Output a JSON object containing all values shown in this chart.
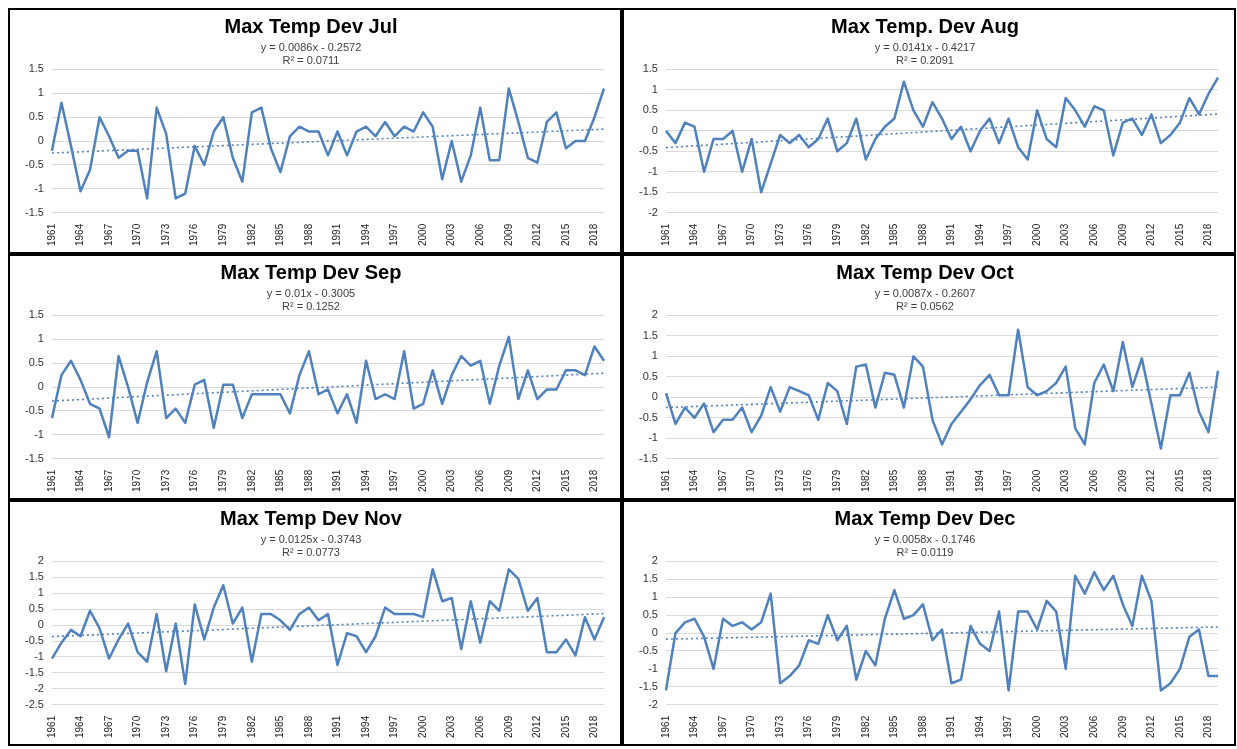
{
  "chart_data": [
    {
      "type": "line",
      "title": "Max Temp Dev Jul",
      "annotations": [
        "y = 0.0086x - 0.2572",
        "R² = 0.0711"
      ],
      "categories": [
        "1961",
        null,
        null,
        "1964",
        null,
        null,
        "1967",
        null,
        null,
        "1970",
        null,
        null,
        "1973",
        null,
        null,
        "1976",
        null,
        null,
        "1979",
        null,
        null,
        "1982",
        null,
        null,
        "1985",
        null,
        null,
        "1988",
        null,
        null,
        "1991",
        null,
        null,
        "1994",
        null,
        null,
        "1997",
        null,
        null,
        "2000",
        null,
        null,
        "2003",
        null,
        null,
        "2006",
        null,
        null,
        "2009",
        null,
        null,
        "2012",
        null,
        null,
        "2015",
        null,
        null,
        "2018",
        null
      ],
      "series": [
        {
          "color": "#4f81bd",
          "values": [
            -0.2,
            0.8,
            -0.1,
            -1.05,
            -0.6,
            0.5,
            0.1,
            -0.35,
            -0.2,
            -0.2,
            -1.2,
            0.7,
            0.15,
            -1.2,
            -1.1,
            -0.1,
            -0.5,
            0.2,
            0.5,
            -0.35,
            -0.85,
            0.6,
            0.7,
            -0.15,
            -0.65,
            0.1,
            0.3,
            0.2,
            0.2,
            -0.3,
            0.2,
            -0.3,
            0.2,
            0.3,
            0.1,
            0.4,
            0.1,
            0.3,
            0.2,
            0.6,
            0.3,
            -0.8,
            0.0,
            -0.85,
            -0.3,
            0.7,
            -0.4,
            -0.4,
            1.1,
            0.4,
            -0.35,
            -0.45,
            0.4,
            0.6,
            -0.15,
            0.0,
            0.0,
            0.5,
            1.1
          ]
        },
        {
          "color": "#4f81bd",
          "line_style": "dotted",
          "values": [
            -0.25,
            null,
            null,
            null,
            null,
            null,
            null,
            null,
            null,
            null,
            null,
            null,
            null,
            null,
            null,
            null,
            null,
            null,
            null,
            null,
            null,
            null,
            null,
            null,
            null,
            null,
            null,
            null,
            null,
            null,
            null,
            null,
            null,
            null,
            null,
            null,
            null,
            null,
            null,
            null,
            null,
            null,
            null,
            null,
            null,
            null,
            null,
            null,
            null,
            null,
            null,
            null,
            null,
            null,
            null,
            null,
            null,
            null,
            0.25
          ]
        }
      ],
      "ylim": [
        -1.5,
        1.5
      ],
      "yticks": [
        -1.5,
        -1,
        -0.5,
        0,
        0.5,
        1,
        1.5
      ],
      "grid": "y",
      "legend": false,
      "marker": "none",
      "line_style": "solid"
    },
    {
      "type": "line",
      "title": "Max Temp. Dev Aug",
      "annotations": [
        "y = 0.0141x - 0.4217",
        "R² = 0.2091"
      ],
      "categories": [
        "1961",
        null,
        null,
        "1964",
        null,
        null,
        "1967",
        null,
        null,
        "1970",
        null,
        null,
        "1973",
        null,
        null,
        "1976",
        null,
        null,
        "1979",
        null,
        null,
        "1982",
        null,
        null,
        "1985",
        null,
        null,
        "1988",
        null,
        null,
        "1991",
        null,
        null,
        "1994",
        null,
        null,
        "1997",
        null,
        null,
        "2000",
        null,
        null,
        "2003",
        null,
        null,
        "2006",
        null,
        null,
        "2009",
        null,
        null,
        "2012",
        null,
        null,
        "2015",
        null,
        null,
        "2018",
        null
      ],
      "series": [
        {
          "color": "#4f81bd",
          "values": [
            0.0,
            -0.3,
            0.2,
            0.1,
            -1.0,
            -0.2,
            -0.2,
            0.0,
            -1.0,
            -0.2,
            -1.5,
            -0.8,
            -0.1,
            -0.3,
            -0.1,
            -0.4,
            -0.2,
            0.3,
            -0.5,
            -0.3,
            0.3,
            -0.7,
            -0.2,
            0.1,
            0.3,
            1.2,
            0.5,
            0.1,
            0.7,
            0.3,
            -0.2,
            0.1,
            -0.5,
            0.0,
            0.3,
            -0.3,
            0.3,
            -0.4,
            -0.7,
            0.5,
            -0.2,
            -0.4,
            0.8,
            0.5,
            0.1,
            0.6,
            0.5,
            -0.6,
            0.2,
            0.3,
            -0.1,
            0.4,
            -0.3,
            -0.1,
            0.2,
            0.8,
            0.4,
            0.9,
            1.3
          ]
        },
        {
          "color": "#4f81bd",
          "line_style": "dotted",
          "values": [
            -0.41,
            null,
            null,
            null,
            null,
            null,
            null,
            null,
            null,
            null,
            null,
            null,
            null,
            null,
            null,
            null,
            null,
            null,
            null,
            null,
            null,
            null,
            null,
            null,
            null,
            null,
            null,
            null,
            null,
            null,
            null,
            null,
            null,
            null,
            null,
            null,
            null,
            null,
            null,
            null,
            null,
            null,
            null,
            null,
            null,
            null,
            null,
            null,
            null,
            null,
            null,
            null,
            null,
            null,
            null,
            null,
            null,
            null,
            0.41
          ]
        }
      ],
      "ylim": [
        -2,
        1.5
      ],
      "yticks": [
        -2,
        -1.5,
        -1,
        -0.5,
        0,
        0.5,
        1,
        1.5
      ],
      "grid": "y",
      "legend": false,
      "marker": "none",
      "line_style": "solid"
    },
    {
      "type": "line",
      "title": "Max Temp Dev Sep",
      "annotations": [
        "y = 0.01x - 0.3005",
        "R² = 0.1252"
      ],
      "categories": [
        "1961",
        null,
        null,
        "1964",
        null,
        null,
        "1967",
        null,
        null,
        "1970",
        null,
        null,
        "1973",
        null,
        null,
        "1976",
        null,
        null,
        "1979",
        null,
        null,
        "1982",
        null,
        null,
        "1985",
        null,
        null,
        "1988",
        null,
        null,
        "1991",
        null,
        null,
        "1994",
        null,
        null,
        "1997",
        null,
        null,
        "2000",
        null,
        null,
        "2003",
        null,
        null,
        "2006",
        null,
        null,
        "2009",
        null,
        null,
        "2012",
        null,
        null,
        "2015",
        null,
        null,
        "2018",
        null
      ],
      "series": [
        {
          "color": "#4f81bd",
          "values": [
            -0.65,
            0.25,
            0.55,
            0.15,
            -0.35,
            -0.45,
            -1.05,
            0.65,
            0.0,
            -0.75,
            0.1,
            0.75,
            -0.65,
            -0.45,
            -0.75,
            0.05,
            0.15,
            -0.85,
            0.05,
            0.05,
            -0.65,
            -0.15,
            -0.15,
            -0.15,
            -0.15,
            -0.55,
            0.25,
            0.75,
            -0.15,
            -0.05,
            -0.55,
            -0.15,
            -0.75,
            0.55,
            -0.25,
            -0.15,
            -0.25,
            0.75,
            -0.45,
            -0.35,
            0.35,
            -0.35,
            0.25,
            0.65,
            0.45,
            0.55,
            -0.35,
            0.45,
            1.05,
            -0.25,
            0.35,
            -0.25,
            -0.05,
            -0.05,
            0.35,
            0.35,
            0.25,
            0.85,
            0.55
          ]
        },
        {
          "color": "#4f81bd",
          "line_style": "dotted",
          "values": [
            -0.29,
            null,
            null,
            null,
            null,
            null,
            null,
            null,
            null,
            null,
            null,
            null,
            null,
            null,
            null,
            null,
            null,
            null,
            null,
            null,
            null,
            null,
            null,
            null,
            null,
            null,
            null,
            null,
            null,
            null,
            null,
            null,
            null,
            null,
            null,
            null,
            null,
            null,
            null,
            null,
            null,
            null,
            null,
            null,
            null,
            null,
            null,
            null,
            null,
            null,
            null,
            null,
            null,
            null,
            null,
            null,
            null,
            null,
            0.29
          ]
        }
      ],
      "ylim": [
        -1.5,
        1.5
      ],
      "yticks": [
        -1.5,
        -1,
        -0.5,
        0,
        0.5,
        1,
        1.5
      ],
      "grid": "y",
      "legend": false,
      "marker": "none",
      "line_style": "solid"
    },
    {
      "type": "line",
      "title": "Max Temp Dev Oct",
      "annotations": [
        "y = 0.0087x - 0.2607",
        "R² = 0.0562"
      ],
      "categories": [
        "1961",
        null,
        null,
        "1964",
        null,
        null,
        "1967",
        null,
        null,
        "1970",
        null,
        null,
        "1973",
        null,
        null,
        "1976",
        null,
        null,
        "1979",
        null,
        null,
        "1982",
        null,
        null,
        "1985",
        null,
        null,
        "1988",
        null,
        null,
        "1991",
        null,
        null,
        "1994",
        null,
        null,
        "1997",
        null,
        null,
        "2000",
        null,
        null,
        "2003",
        null,
        null,
        "2006",
        null,
        null,
        "2009",
        null,
        null,
        "2012",
        null,
        null,
        "2015",
        null,
        null,
        "2018",
        null
      ],
      "series": [
        {
          "color": "#4f81bd",
          "values": [
            0.1,
            -0.65,
            -0.25,
            -0.5,
            -0.15,
            -0.85,
            -0.55,
            -0.55,
            -0.25,
            -0.85,
            -0.45,
            0.25,
            -0.35,
            0.25,
            0.15,
            0.05,
            -0.55,
            0.35,
            0.15,
            -0.65,
            0.75,
            0.8,
            -0.25,
            0.6,
            0.55,
            -0.25,
            1.0,
            0.75,
            -0.55,
            -1.15,
            -0.65,
            -0.35,
            -0.05,
            0.3,
            0.55,
            0.05,
            0.05,
            1.65,
            0.25,
            0.05,
            0.15,
            0.35,
            0.75,
            -0.75,
            -1.15,
            0.35,
            0.8,
            0.15,
            1.35,
            0.25,
            0.95,
            -0.15,
            -1.25,
            0.05,
            0.05,
            0.6,
            -0.35,
            -0.85,
            0.65
          ]
        },
        {
          "color": "#4f81bd",
          "line_style": "dotted",
          "values": [
            -0.25,
            null,
            null,
            null,
            null,
            null,
            null,
            null,
            null,
            null,
            null,
            null,
            null,
            null,
            null,
            null,
            null,
            null,
            null,
            null,
            null,
            null,
            null,
            null,
            null,
            null,
            null,
            null,
            null,
            null,
            null,
            null,
            null,
            null,
            null,
            null,
            null,
            null,
            null,
            null,
            null,
            null,
            null,
            null,
            null,
            null,
            null,
            null,
            null,
            null,
            null,
            null,
            null,
            null,
            null,
            null,
            null,
            null,
            0.25
          ]
        }
      ],
      "ylim": [
        -1.5,
        2
      ],
      "yticks": [
        -1.5,
        -1,
        -0.5,
        0,
        0.5,
        1,
        1.5,
        2
      ],
      "grid": "y",
      "legend": false,
      "marker": "none",
      "line_style": "solid"
    },
    {
      "type": "line",
      "title": "Max Temp Dev Nov",
      "annotations": [
        "y = 0.0125x - 0.3743",
        "R² = 0.0773"
      ],
      "categories": [
        "1961",
        null,
        null,
        "1964",
        null,
        null,
        "1967",
        null,
        null,
        "1970",
        null,
        null,
        "1973",
        null,
        null,
        "1976",
        null,
        null,
        "1979",
        null,
        null,
        "1982",
        null,
        null,
        "1985",
        null,
        null,
        "1988",
        null,
        null,
        "1991",
        null,
        null,
        "1994",
        null,
        null,
        "1997",
        null,
        null,
        "2000",
        null,
        null,
        "2003",
        null,
        null,
        "2006",
        null,
        null,
        "2009",
        null,
        null,
        "2012",
        null,
        null,
        "2015",
        null,
        null,
        "2018",
        null
      ],
      "series": [
        {
          "color": "#4f81bd",
          "values": [
            -1.05,
            -0.55,
            -0.15,
            -0.35,
            0.45,
            -0.1,
            -1.05,
            -0.45,
            0.05,
            -0.85,
            -1.15,
            0.35,
            -1.45,
            0.05,
            -1.85,
            0.65,
            -0.45,
            0.55,
            1.25,
            0.05,
            0.55,
            -1.15,
            0.35,
            0.35,
            0.15,
            -0.15,
            0.35,
            0.55,
            0.15,
            0.35,
            -1.25,
            -0.25,
            -0.35,
            -0.85,
            -0.35,
            0.55,
            0.35,
            0.35,
            0.35,
            0.25,
            1.75,
            0.75,
            0.85,
            -0.75,
            0.75,
            -0.55,
            0.75,
            0.45,
            1.75,
            1.45,
            0.45,
            0.85,
            -0.85,
            -0.85,
            -0.45,
            -0.95,
            0.25,
            -0.45,
            0.25
          ]
        },
        {
          "color": "#4f81bd",
          "line_style": "dotted",
          "values": [
            -0.36,
            null,
            null,
            null,
            null,
            null,
            null,
            null,
            null,
            null,
            null,
            null,
            null,
            null,
            null,
            null,
            null,
            null,
            null,
            null,
            null,
            null,
            null,
            null,
            null,
            null,
            null,
            null,
            null,
            null,
            null,
            null,
            null,
            null,
            null,
            null,
            null,
            null,
            null,
            null,
            null,
            null,
            null,
            null,
            null,
            null,
            null,
            null,
            null,
            null,
            null,
            null,
            null,
            null,
            null,
            null,
            null,
            null,
            0.36
          ]
        }
      ],
      "ylim": [
        -2.5,
        2
      ],
      "yticks": [
        -2.5,
        -2,
        -1.5,
        -1,
        -0.5,
        0,
        0.5,
        1,
        1.5,
        2
      ],
      "grid": "y",
      "legend": false,
      "marker": "none",
      "line_style": "solid"
    },
    {
      "type": "line",
      "title": "Max Temp Dev Dec",
      "annotations": [
        "y = 0.0058x - 0.1746",
        "R² = 0.0119"
      ],
      "categories": [
        "1961",
        null,
        null,
        "1964",
        null,
        null,
        "1967",
        null,
        null,
        "1970",
        null,
        null,
        "1973",
        null,
        null,
        "1976",
        null,
        null,
        "1979",
        null,
        null,
        "1982",
        null,
        null,
        "1985",
        null,
        null,
        "1988",
        null,
        null,
        "1991",
        null,
        null,
        "1994",
        null,
        null,
        "1997",
        null,
        null,
        "2000",
        null,
        null,
        "2003",
        null,
        null,
        "2006",
        null,
        null,
        "2009",
        null,
        null,
        "2012",
        null,
        null,
        "2015",
        null,
        null,
        "2018",
        null
      ],
      "series": [
        {
          "color": "#4f81bd",
          "values": [
            -1.6,
            0.0,
            0.3,
            0.4,
            -0.1,
            -1.0,
            0.4,
            0.2,
            0.3,
            0.1,
            0.3,
            1.1,
            -1.4,
            -1.2,
            -0.9,
            -0.2,
            -0.3,
            0.5,
            -0.2,
            0.2,
            -1.3,
            -0.5,
            -0.9,
            0.4,
            1.2,
            0.4,
            0.5,
            0.8,
            -0.2,
            0.1,
            -1.4,
            -1.3,
            0.2,
            -0.3,
            -0.5,
            0.6,
            -1.6,
            0.6,
            0.6,
            0.1,
            0.9,
            0.6,
            -1.0,
            1.6,
            1.1,
            1.7,
            1.2,
            1.6,
            0.8,
            0.2,
            1.6,
            0.9,
            -1.6,
            -1.4,
            -1.0,
            -0.1,
            0.1,
            -1.2,
            -1.2
          ]
        },
        {
          "color": "#4f81bd",
          "line_style": "dotted",
          "values": [
            -0.17,
            null,
            null,
            null,
            null,
            null,
            null,
            null,
            null,
            null,
            null,
            null,
            null,
            null,
            null,
            null,
            null,
            null,
            null,
            null,
            null,
            null,
            null,
            null,
            null,
            null,
            null,
            null,
            null,
            null,
            null,
            null,
            null,
            null,
            null,
            null,
            null,
            null,
            null,
            null,
            null,
            null,
            null,
            null,
            null,
            null,
            null,
            null,
            null,
            null,
            null,
            null,
            null,
            null,
            null,
            null,
            null,
            null,
            0.17
          ]
        }
      ],
      "ylim": [
        -2,
        2
      ],
      "yticks": [
        -2,
        -1.5,
        -1,
        -0.5,
        0,
        0.5,
        1,
        1.5,
        2
      ],
      "grid": "y",
      "legend": false,
      "marker": "none",
      "line_style": "solid"
    }
  ]
}
